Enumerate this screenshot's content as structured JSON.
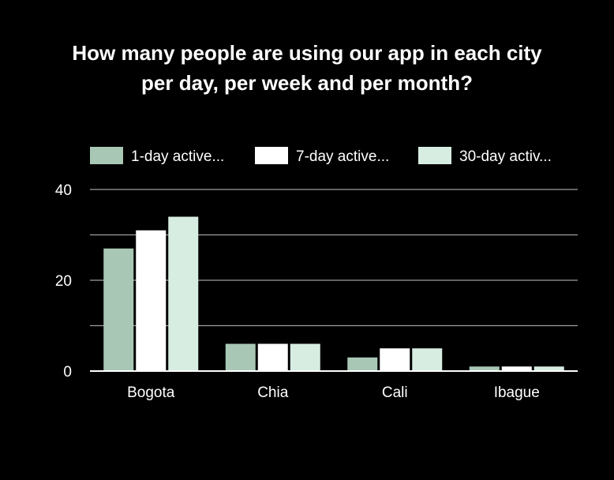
{
  "chart_data": {
    "type": "bar",
    "title_lines": [
      "How many people are using our app in each city",
      "per day, per week and per month?"
    ],
    "categories": [
      "Bogota",
      "Chia",
      "Cali",
      "Ibague"
    ],
    "series": [
      {
        "name": "1-day active...",
        "color": "#a8c8b5",
        "values": [
          27,
          6,
          3,
          1
        ]
      },
      {
        "name": "7-day active...",
        "color": "#ffffff",
        "values": [
          31,
          6,
          5,
          1
        ]
      },
      {
        "name": "30-day activ...",
        "color": "#d7ede2",
        "values": [
          34,
          6,
          5,
          1
        ]
      }
    ],
    "ylim": [
      0,
      40
    ],
    "yticks": [
      "0",
      "20",
      "40"
    ],
    "ygrid_values": [
      0,
      10,
      20,
      30,
      40
    ],
    "grid": true,
    "legend_position": "top",
    "background_color": "#000000",
    "grid_color": "#9e9e9e"
  }
}
